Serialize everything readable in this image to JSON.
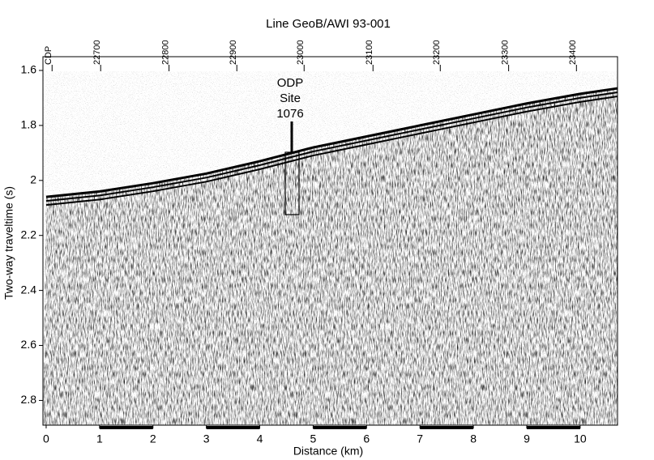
{
  "chart_data": {
    "type": "seismic",
    "title": "Line GeoB/AWI 93-001",
    "x_label": "Distance (km)",
    "y_label": "Two-way traveltime (s)",
    "xlim": [
      -0.06,
      10.7
    ],
    "ylim": [
      1.55,
      2.89
    ],
    "y_inverted": true,
    "xticks": [
      0,
      1,
      2,
      3,
      4,
      5,
      6,
      7,
      8,
      9,
      10
    ],
    "yticks": [
      1.6,
      1.8,
      2.0,
      2.2,
      2.4,
      2.6,
      2.8
    ],
    "cdp_ticks": [
      {
        "value": 0.05,
        "label": "CDP"
      },
      {
        "value": 0.96,
        "label": "22700"
      },
      {
        "value": 2.24,
        "label": "22800"
      },
      {
        "value": 3.51,
        "label": "22900"
      },
      {
        "value": 4.77,
        "label": "23000"
      },
      {
        "value": 6.06,
        "label": "23100"
      },
      {
        "value": 7.32,
        "label": "23200"
      },
      {
        "value": 8.6,
        "label": "23300"
      },
      {
        "value": 9.87,
        "label": "23400"
      }
    ],
    "seafloor": {
      "x": [
        0,
        1,
        2,
        3,
        4,
        5,
        6,
        7,
        8,
        9,
        10,
        10.7
      ],
      "values": [
        2.06,
        2.04,
        2.01,
        1.975,
        1.93,
        1.88,
        1.84,
        1.8,
        1.76,
        1.72,
        1.685,
        1.665
      ],
      "color": "#000000"
    },
    "annotation": [
      "ODP",
      "Site",
      "1076"
    ]
  }
}
